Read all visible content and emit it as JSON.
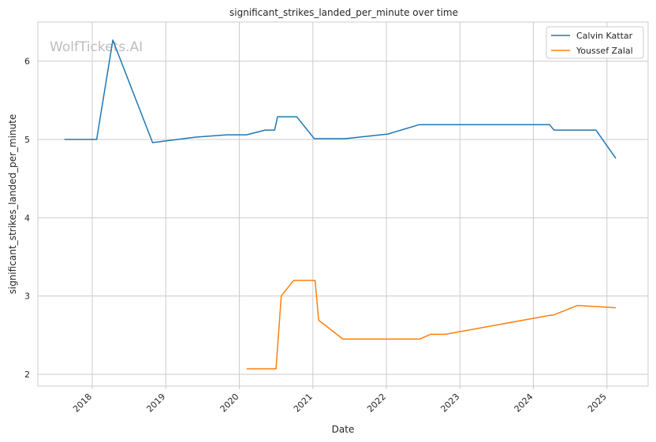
{
  "watermark": "WolfTickets.AI",
  "chart_data": {
    "type": "line",
    "title": "significant_strikes_landed_per_minute over time",
    "xlabel": "Date",
    "ylabel": "significant_strikes_landed_per_minute",
    "xlim": [
      2017.26,
      2025.56
    ],
    "ylim": [
      1.85,
      6.5
    ],
    "x_ticks": [
      2018,
      2019,
      2020,
      2021,
      2022,
      2023,
      2024,
      2025
    ],
    "x_tick_labels": [
      "2018",
      "2019",
      "2020",
      "2021",
      "2022",
      "2023",
      "2024",
      "2025"
    ],
    "y_ticks": [
      2,
      3,
      4,
      5,
      6
    ],
    "y_tick_labels": [
      "2",
      "3",
      "4",
      "5",
      "6"
    ],
    "grid": true,
    "legend_position": "top-right",
    "series": [
      {
        "name": "Calvin Kattar",
        "color": "#1f77b4",
        "points": [
          [
            2017.62,
            5.0
          ],
          [
            2018.06,
            5.0
          ],
          [
            2018.28,
            6.27
          ],
          [
            2018.82,
            4.96
          ],
          [
            2019.4,
            5.03
          ],
          [
            2019.83,
            5.06
          ],
          [
            2020.1,
            5.06
          ],
          [
            2020.35,
            5.12
          ],
          [
            2020.48,
            5.12
          ],
          [
            2020.52,
            5.29
          ],
          [
            2020.78,
            5.29
          ],
          [
            2021.02,
            5.01
          ],
          [
            2021.44,
            5.01
          ],
          [
            2022.02,
            5.07
          ],
          [
            2022.45,
            5.19
          ],
          [
            2022.7,
            5.19
          ],
          [
            2024.22,
            5.19
          ],
          [
            2024.28,
            5.12
          ],
          [
            2024.85,
            5.12
          ],
          [
            2025.12,
            4.76
          ]
        ]
      },
      {
        "name": "Youssef Zalal",
        "color": "#ff7f0e",
        "points": [
          [
            2020.1,
            2.07
          ],
          [
            2020.5,
            2.07
          ],
          [
            2020.57,
            3.0
          ],
          [
            2020.74,
            3.2
          ],
          [
            2021.03,
            3.2
          ],
          [
            2021.08,
            2.69
          ],
          [
            2021.41,
            2.45
          ],
          [
            2022.45,
            2.45
          ],
          [
            2022.6,
            2.51
          ],
          [
            2022.8,
            2.51
          ],
          [
            2024.2,
            2.75
          ],
          [
            2024.28,
            2.76
          ],
          [
            2024.6,
            2.88
          ],
          [
            2025.12,
            2.85
          ]
        ]
      }
    ]
  }
}
